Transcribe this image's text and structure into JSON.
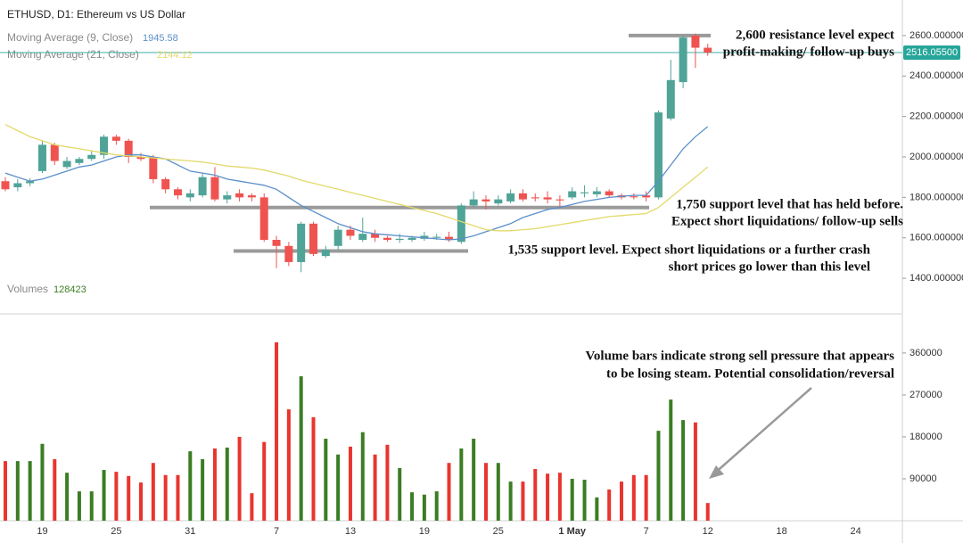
{
  "chart_data": {
    "type": "candlestick",
    "title": "ETHUSD, D1: Ethereum vs US Dollar",
    "categories": [
      null,
      null,
      null,
      "19",
      null,
      null,
      null,
      null,
      null,
      "25",
      null,
      null,
      null,
      null,
      null,
      "31",
      null,
      null,
      null,
      null,
      null,
      null,
      "7",
      null,
      null,
      null,
      null,
      null,
      "13",
      null,
      null,
      null,
      null,
      null,
      "19",
      null,
      null,
      null,
      null,
      null,
      "25",
      null,
      null,
      null,
      null,
      null,
      "1 May",
      null,
      null,
      null,
      null,
      null,
      "7",
      null,
      null,
      null,
      null,
      "12",
      null,
      null,
      null,
      null,
      null,
      "18",
      null,
      null,
      null,
      null,
      null,
      "24",
      null,
      null,
      null
    ],
    "open": [
      1880,
      1850,
      1870,
      1930,
      2060,
      1950,
      1970,
      1990,
      2010,
      2100,
      2080,
      2000,
      2000,
      1890,
      1840,
      1800,
      1810,
      1900,
      1790,
      1820,
      1810,
      1800,
      1590,
      1560,
      1480,
      1670,
      1510,
      1560,
      1640,
      1590,
      1620,
      1600,
      1590,
      1590,
      1595,
      1600,
      1605,
      1580,
      1760,
      1790,
      1770,
      1780,
      1820,
      1800,
      1800,
      1790,
      1800,
      1820,
      1815,
      1830,
      1810,
      1805,
      1810,
      1800,
      2190,
      2370,
      2600,
      2540,
      null,
      null,
      null,
      null,
      null,
      null,
      null,
      null,
      null,
      null,
      null,
      null,
      null,
      null,
      null
    ],
    "high": [
      1900,
      1890,
      1895,
      2080,
      2070,
      2000,
      2000,
      2030,
      2110,
      2110,
      2090,
      2020,
      2010,
      1900,
      1850,
      1840,
      1920,
      1950,
      1830,
      1840,
      1820,
      1820,
      1610,
      1580,
      1680,
      1680,
      1560,
      1660,
      1660,
      1700,
      1640,
      1610,
      1620,
      1610,
      1630,
      1620,
      1630,
      1770,
      1830,
      1810,
      1810,
      1840,
      1840,
      1820,
      1830,
      1810,
      1850,
      1860,
      1850,
      1840,
      1820,
      1820,
      1830,
      2230,
      2480,
      2600,
      2610,
      2560,
      null,
      null,
      null,
      null,
      null,
      null,
      null,
      null,
      null,
      null,
      null,
      null,
      null,
      null,
      null
    ],
    "low": [
      1830,
      1830,
      1855,
      1920,
      1960,
      1940,
      1960,
      1980,
      1990,
      2060,
      1970,
      1980,
      1870,
      1820,
      1790,
      1780,
      1800,
      1780,
      1770,
      1780,
      1780,
      1580,
      1450,
      1460,
      1430,
      1510,
      1500,
      1540,
      1590,
      1580,
      1580,
      1580,
      1575,
      1580,
      1585,
      1590,
      1580,
      1570,
      1750,
      1740,
      1760,
      1770,
      1780,
      1780,
      1770,
      1750,
      1790,
      1800,
      1800,
      1800,
      1790,
      1790,
      1780,
      1790,
      2180,
      2340,
      2440,
      2500,
      null,
      null,
      null,
      null,
      null,
      null,
      null,
      null,
      null,
      null,
      null,
      null,
      null,
      null,
      null
    ],
    "close": [
      1840,
      1870,
      1880,
      2060,
      1980,
      1980,
      1990,
      2010,
      2100,
      2080,
      2000,
      1990,
      1890,
      1840,
      1810,
      1820,
      1900,
      1790,
      1810,
      1800,
      1800,
      1590,
      1560,
      1480,
      1670,
      1520,
      1540,
      1640,
      1610,
      1620,
      1600,
      1590,
      1595,
      1600,
      1610,
      1605,
      1590,
      1760,
      1790,
      1780,
      1790,
      1820,
      1790,
      1795,
      1790,
      1785,
      1830,
      1825,
      1830,
      1810,
      1800,
      1800,
      1800,
      2220,
      2380,
      2590,
      2540,
      2516,
      null,
      null,
      null,
      null,
      null,
      null,
      null,
      null,
      null,
      null,
      null,
      null,
      null,
      null,
      null
    ],
    "colors": {
      "up": "#4fa397",
      "down": "#ef5350"
    },
    "ylim": [
      1224,
      2776
    ],
    "yticks": [
      {
        "value": 2600,
        "label": "2600.000000"
      },
      {
        "value": 2400,
        "label": "2400.000000"
      },
      {
        "value": 2200,
        "label": "2200.000000"
      },
      {
        "value": 2000,
        "label": "2000.000000"
      },
      {
        "value": 1800,
        "label": "1800.000000"
      },
      {
        "value": 1600,
        "label": "1600.000000"
      },
      {
        "value": 1400,
        "label": "1400.000000"
      }
    ],
    "moving_averages": [
      {
        "name": "Moving Average (9, Close)",
        "value_label": "1945.58",
        "color": "#5b8fc9",
        "values": [
          1920,
          1900,
          1880,
          1890,
          1910,
          1930,
          1950,
          1960,
          1980,
          2000,
          2010,
          2010,
          2000,
          1990,
          1960,
          1930,
          1920,
          1910,
          1890,
          1880,
          1870,
          1860,
          1840,
          1800,
          1760,
          1730,
          1700,
          1670,
          1650,
          1630,
          1620,
          1615,
          1610,
          1605,
          1600,
          1595,
          1590,
          1595,
          1610,
          1630,
          1650,
          1670,
          1700,
          1720,
          1740,
          1750,
          1765,
          1780,
          1790,
          1800,
          1805,
          1810,
          1810,
          1880,
          1960,
          2040,
          2100,
          2150,
          null,
          null,
          null,
          null,
          null,
          null,
          null,
          null,
          null,
          null,
          null,
          null,
          null,
          null,
          null
        ]
      },
      {
        "name": "Moving Average (21, Close)",
        "value_label": "2144.12",
        "color": "#e3d96a",
        "values": [
          2160,
          2130,
          2100,
          2080,
          2060,
          2050,
          2040,
          2030,
          2020,
          2010,
          2005,
          2000,
          1995,
          1990,
          1985,
          1980,
          1975,
          1965,
          1955,
          1950,
          1945,
          1935,
          1920,
          1905,
          1885,
          1870,
          1855,
          1840,
          1825,
          1810,
          1795,
          1780,
          1765,
          1750,
          1735,
          1720,
          1700,
          1680,
          1660,
          1640,
          1635,
          1635,
          1640,
          1645,
          1655,
          1665,
          1675,
          1685,
          1695,
          1705,
          1710,
          1715,
          1720,
          1750,
          1800,
          1850,
          1900,
          1950,
          null,
          null,
          null,
          null,
          null,
          null,
          null,
          null,
          null,
          null,
          null,
          null,
          null,
          null,
          null
        ]
      }
    ],
    "last_price": {
      "value": 2516.055,
      "label": "2516.05500",
      "color": "#26a69a"
    },
    "annotations": [
      {
        "level": 2600,
        "lines": [
          "2,600 resistance level expect",
          "profit-making/ follow-up buys"
        ]
      },
      {
        "level": 1750,
        "lines": [
          "1,750 support level that has held before.",
          "Expect short liquidations/ follow-up sells"
        ]
      },
      {
        "level": 1535,
        "lines": [
          "1,535 support level. Expect short liquidations or a further crash",
          "short prices go lower than this level"
        ]
      }
    ],
    "volume": {
      "title": "Volumes",
      "value_label": "128423",
      "colors": {
        "up": "#3b7d23",
        "down": "#e8352e"
      },
      "values": [
        128000,
        128000,
        128000,
        165000,
        132000,
        103000,
        63000,
        63000,
        109000,
        105000,
        96000,
        82000,
        124000,
        98000,
        98000,
        149000,
        132000,
        155000,
        157000,
        180000,
        59000,
        169000,
        383000,
        239000,
        310000,
        222000,
        176000,
        142000,
        159000,
        190000,
        142000,
        163000,
        113000,
        61000,
        56000,
        63000,
        124000,
        155000,
        176000,
        124000,
        124000,
        84000,
        84000,
        111000,
        101000,
        103000,
        90000,
        88000,
        50000,
        67000,
        84000,
        98000,
        98000,
        193000,
        260000,
        216000,
        211000,
        38000,
        null,
        null,
        null,
        null,
        null,
        null,
        null,
        null,
        null,
        null,
        null,
        null,
        null,
        null,
        null
      ],
      "ylim": [
        0,
        444000
      ],
      "yticks": [
        360000,
        270000,
        180000,
        90000
      ],
      "annotation": [
        "Volume bars indicate strong sell pressure that appears",
        "to be losing steam. Potential consolidation/reversal"
      ]
    }
  }
}
